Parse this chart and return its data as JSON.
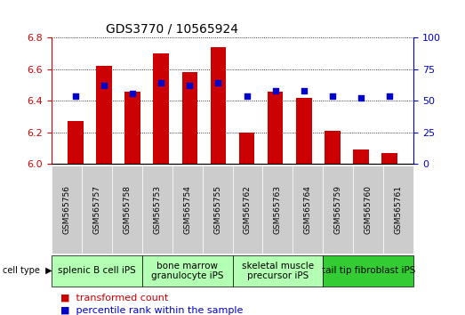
{
  "title": "GDS3770 / 10565924",
  "samples": [
    "GSM565756",
    "GSM565757",
    "GSM565758",
    "GSM565753",
    "GSM565754",
    "GSM565755",
    "GSM565762",
    "GSM565763",
    "GSM565764",
    "GSM565759",
    "GSM565760",
    "GSM565761"
  ],
  "transformed_count": [
    6.27,
    6.62,
    6.46,
    6.7,
    6.58,
    6.74,
    6.2,
    6.46,
    6.42,
    6.21,
    6.09,
    6.07
  ],
  "percentile_rank": [
    54,
    62,
    56,
    64,
    62,
    64,
    54,
    58,
    58,
    54,
    52,
    54
  ],
  "cell_types": [
    {
      "label": "splenic B cell iPS",
      "start": 0,
      "end": 3,
      "color": "#b3ffb3"
    },
    {
      "label": "bone marrow\ngranulocyte iPS",
      "start": 3,
      "end": 6,
      "color": "#b3ffb3"
    },
    {
      "label": "skeletal muscle\nprecursor iPS",
      "start": 6,
      "end": 9,
      "color": "#b3ffb3"
    },
    {
      "label": "tail tip fibroblast iPS",
      "start": 9,
      "end": 12,
      "color": "#33cc33"
    }
  ],
  "ylim_left": [
    6.0,
    6.8
  ],
  "ylim_right": [
    0,
    100
  ],
  "yticks_left": [
    6.0,
    6.2,
    6.4,
    6.6,
    6.8
  ],
  "yticks_right": [
    0,
    25,
    50,
    75,
    100
  ],
  "bar_color": "#cc0000",
  "dot_color": "#0000cc",
  "bar_width": 0.55,
  "tick_label_color_left": "#cc0000",
  "tick_label_color_right": "#0000cc",
  "bg_color": "#ffffff",
  "sample_box_color": "#cccccc",
  "title_fontsize": 10,
  "axis_fontsize": 8,
  "legend_fontsize": 8,
  "cell_type_fontsize": 7.5
}
